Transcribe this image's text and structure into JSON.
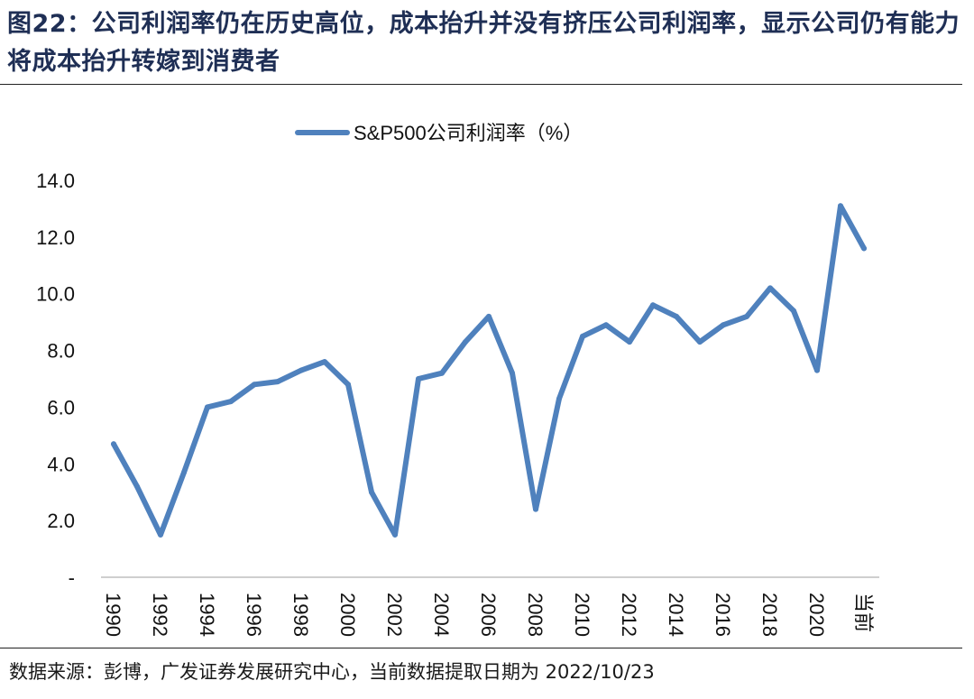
{
  "header": {
    "title": "图22：公司利润率仍在历史高位，成本抬升并没有挤压公司利润率，显示公司仍有能力将成本抬升转嫁到消费者"
  },
  "footer": {
    "source": "数据来源：彭博，广发证券发展研究中心，当前数据提取日期为 2022/10/23"
  },
  "chart_data": {
    "type": "line",
    "title": "",
    "xlabel": "",
    "ylabel": "",
    "categories": [
      "1990",
      "1991",
      "1992",
      "1993",
      "1994",
      "1995",
      "1996",
      "1997",
      "1998",
      "1999",
      "2000",
      "2001",
      "2002",
      "2003",
      "2004",
      "2005",
      "2006",
      "2007",
      "2008",
      "2009",
      "2010",
      "2011",
      "2012",
      "2013",
      "2014",
      "2015",
      "2016",
      "2017",
      "2018",
      "2019",
      "2020",
      "2021",
      "当前"
    ],
    "x_tick_labels": [
      "1990",
      "1992",
      "1994",
      "1996",
      "1998",
      "2000",
      "2002",
      "2004",
      "2006",
      "2008",
      "2010",
      "2012",
      "2014",
      "2016",
      "2018",
      "2020",
      "当前"
    ],
    "y_tick_labels": [
      "-",
      "2.0",
      "4.0",
      "6.0",
      "8.0",
      "10.0",
      "12.0",
      "14.0"
    ],
    "ylim": [
      0,
      14
    ],
    "legend_position": "top",
    "grid": false,
    "series": [
      {
        "name": "S&P500公司利润率（%）",
        "color": "#4f81bd",
        "values": [
          4.7,
          3.2,
          1.5,
          3.7,
          6.0,
          6.2,
          6.8,
          6.9,
          7.3,
          7.6,
          6.8,
          3.0,
          1.5,
          7.0,
          7.2,
          8.3,
          9.2,
          7.2,
          2.4,
          6.3,
          8.5,
          8.9,
          8.3,
          9.6,
          9.2,
          8.3,
          8.9,
          9.2,
          10.2,
          9.4,
          7.3,
          13.1,
          11.6
        ]
      }
    ]
  }
}
